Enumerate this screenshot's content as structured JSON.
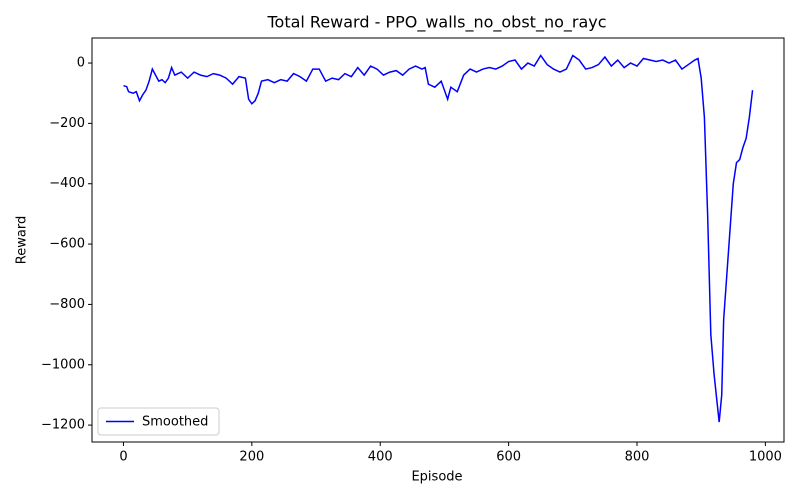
{
  "chart_data": {
    "type": "line",
    "title": "Total Reward - PPO_walls_no_obst_no_rayc",
    "x_label": "Episode",
    "y_label": "Reward",
    "x": [
      0,
      5,
      8,
      15,
      20,
      25,
      30,
      35,
      40,
      45,
      50,
      55,
      60,
      65,
      70,
      75,
      80,
      90,
      100,
      110,
      120,
      130,
      140,
      150,
      160,
      170,
      180,
      190,
      195,
      200,
      205,
      210,
      215,
      225,
      235,
      245,
      255,
      265,
      275,
      285,
      295,
      305,
      315,
      325,
      335,
      345,
      355,
      365,
      375,
      385,
      395,
      405,
      415,
      425,
      435,
      445,
      455,
      465,
      470,
      475,
      485,
      495,
      505,
      510,
      520,
      530,
      540,
      550,
      560,
      570,
      580,
      590,
      600,
      610,
      620,
      630,
      640,
      650,
      660,
      670,
      680,
      690,
      700,
      710,
      720,
      730,
      740,
      750,
      760,
      770,
      780,
      790,
      800,
      810,
      820,
      830,
      840,
      850,
      860,
      870,
      880,
      890,
      895,
      900,
      905,
      910,
      915,
      920,
      925,
      928,
      932,
      935,
      940,
      945,
      950,
      955,
      960,
      965,
      970,
      975,
      980
    ],
    "series": [
      {
        "name": "Smoothed",
        "color": "#0000ff",
        "values": [
          -75,
          -78,
          -95,
          -100,
          -95,
          -125,
          -105,
          -90,
          -60,
          -20,
          -40,
          -60,
          -55,
          -65,
          -50,
          -15,
          -40,
          -30,
          -50,
          -30,
          -40,
          -45,
          -35,
          -40,
          -50,
          -70,
          -45,
          -50,
          -120,
          -135,
          -125,
          -100,
          -60,
          -55,
          -65,
          -55,
          -60,
          -35,
          -45,
          -60,
          -20,
          -20,
          -60,
          -50,
          -55,
          -35,
          -45,
          -15,
          -40,
          -10,
          -20,
          -40,
          -30,
          -25,
          -40,
          -20,
          -10,
          -20,
          -15,
          -70,
          -80,
          -60,
          -120,
          -80,
          -95,
          -40,
          -20,
          -30,
          -20,
          -15,
          -20,
          -10,
          5,
          10,
          -20,
          0,
          -10,
          25,
          -5,
          -20,
          -30,
          -20,
          25,
          10,
          -20,
          -15,
          -5,
          20,
          -10,
          10,
          -15,
          0,
          -10,
          15,
          10,
          5,
          10,
          0,
          10,
          -20,
          -5,
          10,
          15,
          -50,
          -180,
          -500,
          -900,
          -1030,
          -1130,
          -1190,
          -1100,
          -850,
          -700,
          -550,
          -400,
          -330,
          -320,
          -280,
          -250,
          -180,
          -90
        ]
      }
    ],
    "xlim": [
      -49,
      1029
    ],
    "ylim": [
      -1256,
      83
    ],
    "xticks": [
      0,
      200,
      400,
      600,
      800,
      1000
    ],
    "yticks": [
      {
        "value": -1200,
        "label": "−1200"
      },
      {
        "value": -1000,
        "label": "−1000"
      },
      {
        "value": -800,
        "label": "−800"
      },
      {
        "value": -600,
        "label": "−600"
      },
      {
        "value": -400,
        "label": "−400"
      },
      {
        "value": -200,
        "label": "−200"
      },
      0
    ],
    "legend": "lower left"
  }
}
